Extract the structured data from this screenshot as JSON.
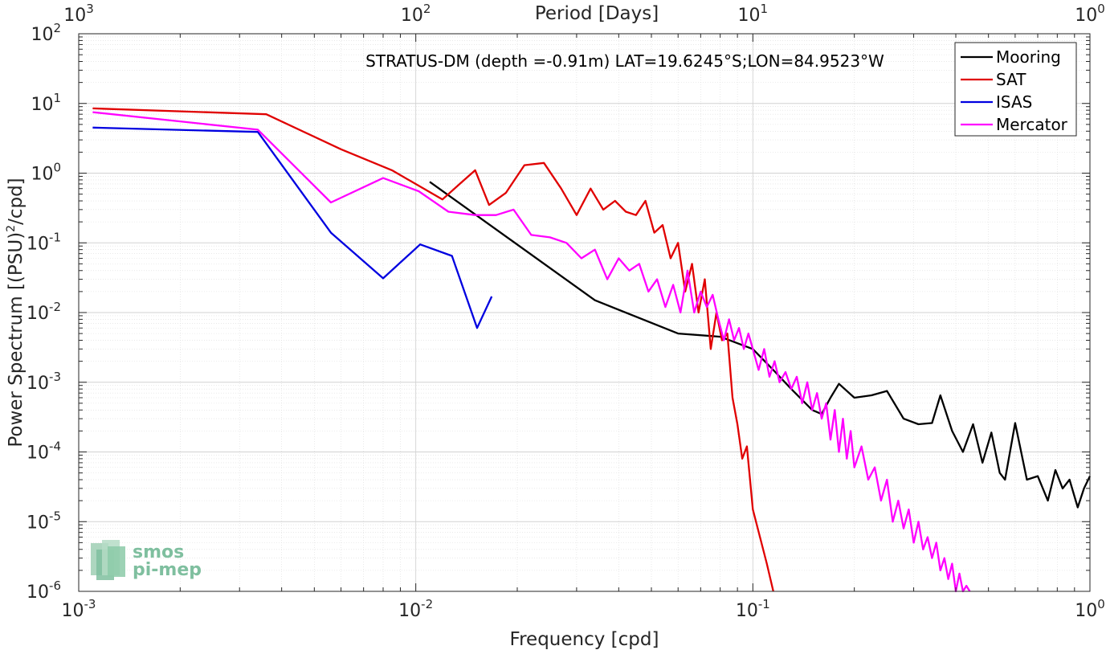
{
  "chart_data": {
    "type": "line",
    "title": "STRATUS-DM (depth =-0.91m) LAT=19.6245°S;LON=84.9523°W",
    "xlabel": "Frequency [cpd]",
    "ylabel": "Power Spectrum [(PSU)",
    "ylabel_sup": "2",
    "ylabel_tail": "/cpd]",
    "top_xlabel": "Period [Days]",
    "xscale": "log",
    "yscale": "log",
    "xlim": [
      0.001,
      1
    ],
    "ylim": [
      1e-06,
      100
    ],
    "grid": true,
    "minor_grid": true,
    "legend_position": "top-right",
    "x_ticks": [
      {
        "value": 0.001,
        "base": "10",
        "exp": "-3"
      },
      {
        "value": 0.01,
        "base": "10",
        "exp": "-2"
      },
      {
        "value": 0.1,
        "base": "10",
        "exp": "-1"
      },
      {
        "value": 1,
        "base": "10",
        "exp": "0"
      }
    ],
    "y_ticks": [
      {
        "value": 1e-06,
        "base": "10",
        "exp": "-6"
      },
      {
        "value": 1e-05,
        "base": "10",
        "exp": "-5"
      },
      {
        "value": 0.0001,
        "base": "10",
        "exp": "-4"
      },
      {
        "value": 0.001,
        "base": "10",
        "exp": "-3"
      },
      {
        "value": 0.01,
        "base": "10",
        "exp": "-2"
      },
      {
        "value": 0.1,
        "base": "10",
        "exp": "-1"
      },
      {
        "value": 1,
        "base": "10",
        "exp": "0"
      },
      {
        "value": 10,
        "base": "10",
        "exp": "1"
      },
      {
        "value": 100,
        "base": "10",
        "exp": "2"
      }
    ],
    "top_ticks": [
      {
        "value": 0.001,
        "base": "10",
        "exp": "3"
      },
      {
        "value": 0.01,
        "base": "10",
        "exp": "2"
      },
      {
        "value": 0.1,
        "base": "10",
        "exp": "1"
      },
      {
        "value": 1,
        "base": "10",
        "exp": "0"
      }
    ],
    "series": [
      {
        "name": "Mooring",
        "color": "#000000",
        "x": [
          0.011,
          0.034,
          0.06,
          0.08,
          0.1,
          0.115,
          0.13,
          0.15,
          0.16,
          0.17,
          0.18,
          0.2,
          0.225,
          0.25,
          0.28,
          0.31,
          0.34,
          0.36,
          0.39,
          0.42,
          0.45,
          0.48,
          0.51,
          0.54,
          0.56,
          0.6,
          0.65,
          0.7,
          0.75,
          0.79,
          0.83,
          0.87,
          0.92,
          0.96,
          1.0
        ],
        "y": [
          0.75,
          0.015,
          0.005,
          0.0045,
          0.003,
          0.0015,
          0.0008,
          0.0004,
          0.00035,
          0.0006,
          0.00095,
          0.0006,
          0.00065,
          0.00075,
          0.0003,
          0.00025,
          0.00026,
          0.00065,
          0.0002,
          0.0001,
          0.00025,
          7e-05,
          0.00019,
          5e-05,
          4e-05,
          0.00026,
          4e-05,
          4.5e-05,
          2e-05,
          5.5e-05,
          3e-05,
          4e-05,
          1.6e-05,
          3e-05,
          4.5e-05
        ]
      },
      {
        "name": "SAT",
        "color": "#e00000",
        "x": [
          0.0011,
          0.0036,
          0.006,
          0.0085,
          0.012,
          0.0135,
          0.015,
          0.0165,
          0.0185,
          0.021,
          0.024,
          0.027,
          0.03,
          0.033,
          0.036,
          0.039,
          0.042,
          0.045,
          0.048,
          0.051,
          0.054,
          0.057,
          0.06,
          0.063,
          0.066,
          0.069,
          0.072,
          0.075,
          0.078,
          0.081,
          0.084,
          0.087,
          0.09,
          0.093,
          0.096,
          0.1,
          0.105,
          0.11,
          0.115
        ],
        "y": [
          8.5,
          7.0,
          2.2,
          1.1,
          0.42,
          0.7,
          1.1,
          0.35,
          0.52,
          1.3,
          1.4,
          0.6,
          0.25,
          0.6,
          0.3,
          0.4,
          0.28,
          0.25,
          0.4,
          0.14,
          0.18,
          0.06,
          0.1,
          0.02,
          0.05,
          0.01,
          0.03,
          0.003,
          0.01,
          0.004,
          0.005,
          0.0006,
          0.00025,
          8e-05,
          0.00012,
          1.5e-05,
          6e-06,
          2.5e-06,
          1e-06
        ]
      },
      {
        "name": "ISAS",
        "color": "#0000e0",
        "x": [
          0.0011,
          0.0034,
          0.0056,
          0.008,
          0.0103,
          0.0128,
          0.0152,
          0.0168
        ],
        "y": [
          4.5,
          3.9,
          0.14,
          0.031,
          0.095,
          0.065,
          0.006,
          0.017
        ]
      },
      {
        "name": "Mercator",
        "color": "#ff00ff",
        "x": [
          0.0011,
          0.0034,
          0.0056,
          0.008,
          0.0102,
          0.0125,
          0.015,
          0.0173,
          0.0195,
          0.022,
          0.025,
          0.028,
          0.031,
          0.034,
          0.037,
          0.04,
          0.043,
          0.046,
          0.049,
          0.052,
          0.055,
          0.058,
          0.061,
          0.064,
          0.067,
          0.07,
          0.073,
          0.076,
          0.079,
          0.082,
          0.085,
          0.088,
          0.091,
          0.094,
          0.097,
          0.1,
          0.104,
          0.108,
          0.112,
          0.116,
          0.12,
          0.125,
          0.13,
          0.135,
          0.14,
          0.145,
          0.15,
          0.155,
          0.16,
          0.165,
          0.17,
          0.175,
          0.18,
          0.185,
          0.19,
          0.195,
          0.2,
          0.21,
          0.22,
          0.23,
          0.24,
          0.25,
          0.26,
          0.27,
          0.28,
          0.29,
          0.3,
          0.31,
          0.32,
          0.33,
          0.34,
          0.35,
          0.36,
          0.37,
          0.38,
          0.39,
          0.4,
          0.41,
          0.42,
          0.43,
          0.44
        ],
        "y": [
          7.5,
          4.2,
          0.38,
          0.85,
          0.55,
          0.28,
          0.25,
          0.25,
          0.3,
          0.13,
          0.12,
          0.1,
          0.06,
          0.08,
          0.03,
          0.06,
          0.04,
          0.05,
          0.02,
          0.03,
          0.012,
          0.025,
          0.01,
          0.04,
          0.01,
          0.02,
          0.012,
          0.018,
          0.008,
          0.004,
          0.008,
          0.004,
          0.006,
          0.003,
          0.005,
          0.003,
          0.0015,
          0.003,
          0.0012,
          0.002,
          0.001,
          0.0014,
          0.0008,
          0.0012,
          0.0005,
          0.001,
          0.0004,
          0.0007,
          0.0003,
          0.0005,
          0.00015,
          0.0004,
          0.0001,
          0.0003,
          8e-05,
          0.0002,
          6e-05,
          0.00012,
          4e-05,
          6e-05,
          2e-05,
          4e-05,
          1e-05,
          2e-05,
          8e-06,
          1.5e-05,
          5e-06,
          1e-05,
          4e-06,
          6e-06,
          3e-06,
          5e-06,
          2e-06,
          3e-06,
          1.5e-06,
          2.5e-06,
          1e-06,
          1.8e-06,
          1e-06,
          1.2e-06,
          1e-06
        ]
      }
    ],
    "watermark": {
      "line1": "smos",
      "line2": "pi-mep"
    }
  }
}
